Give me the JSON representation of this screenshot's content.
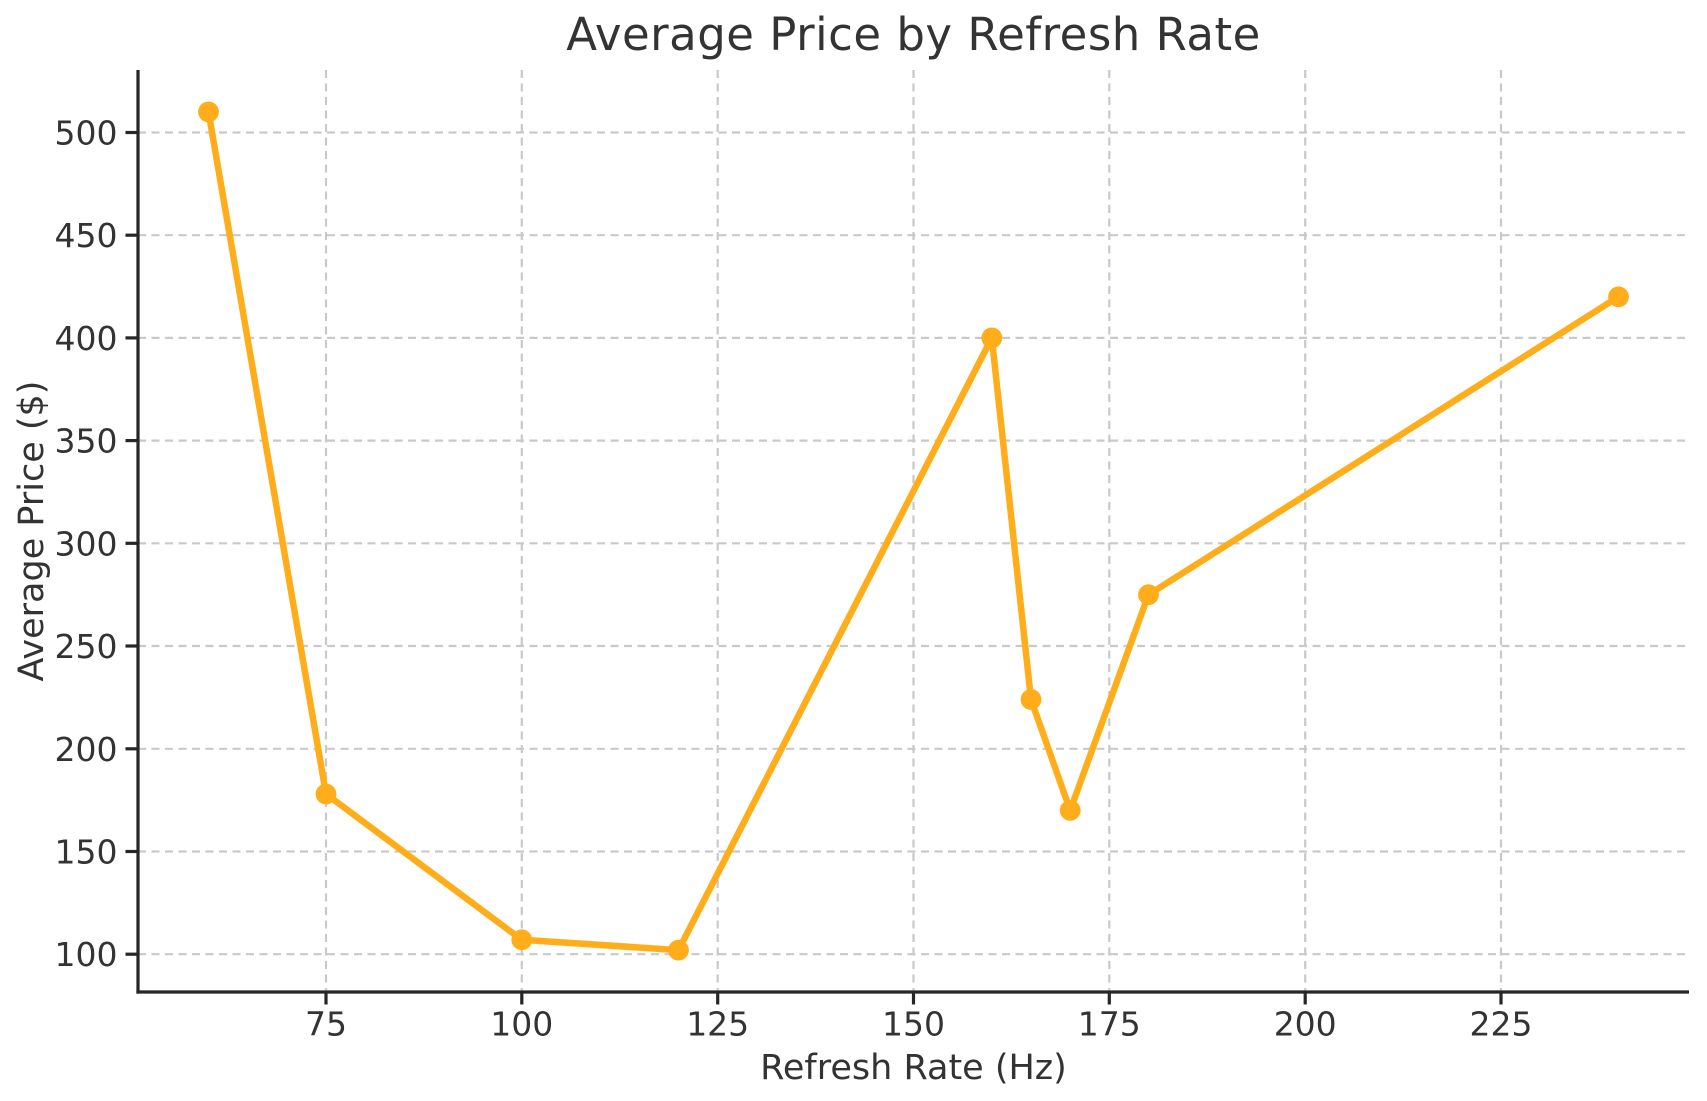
{
  "chart_data": {
    "type": "line",
    "title": "Average Price by Refresh Rate",
    "xlabel": "Refresh Rate (Hz)",
    "ylabel": "Average Price ($)",
    "x": [
      60,
      75,
      100,
      120,
      160,
      165,
      170,
      180,
      240
    ],
    "y": [
      510,
      178,
      107,
      102,
      400,
      224,
      170,
      275,
      420
    ],
    "series": [
      {
        "name": "Average Price",
        "x": [
          60,
          75,
          100,
          120,
          160,
          165,
          170,
          180,
          240
        ],
        "values": [
          510,
          178,
          107,
          102,
          400,
          224,
          170,
          275,
          420
        ]
      }
    ],
    "xticks": [
      75,
      100,
      125,
      150,
      175,
      200,
      225
    ],
    "yticks": [
      100,
      150,
      200,
      250,
      300,
      350,
      400,
      450,
      500
    ],
    "xlim": [
      51,
      249
    ],
    "ylim": [
      81.6,
      530.4
    ],
    "grid": true,
    "grid_style": "dashed",
    "legend": "none",
    "marker": "circle",
    "colors": {
      "line": "#FFAD1A",
      "grid": "#C9C9C9",
      "axis": "#262626",
      "text": "#333333",
      "background": "#FFFFFF"
    }
  }
}
